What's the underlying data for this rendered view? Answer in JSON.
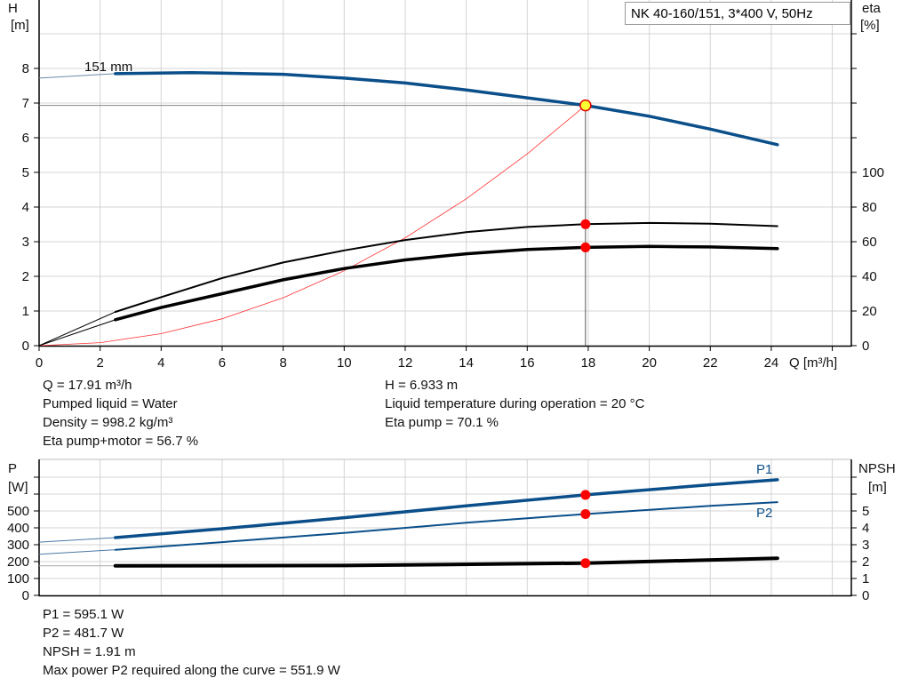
{
  "chart_data": [
    {
      "type": "line",
      "title": "NK 40-160/151, 3*400 V, 50Hz",
      "xlabel": "Q [m³/h]",
      "ylabel_left": "H",
      "ylabel_left_unit": "[m]",
      "ylabel_right": "eta",
      "ylabel_right_unit": "[%]",
      "xlim": [
        0,
        26
      ],
      "ylim_left": [
        0,
        10
      ],
      "ylim_right": [
        0,
        200
      ],
      "x_ticks": [
        "0",
        "2",
        "4",
        "6",
        "8",
        "10",
        "12",
        "14",
        "16",
        "18",
        "20",
        "22",
        "24"
      ],
      "y_left_ticks": [
        "0",
        "1",
        "2",
        "3",
        "4",
        "5",
        "6",
        "7",
        "8"
      ],
      "y_right_ticks": [
        "0",
        "20",
        "40",
        "60",
        "80",
        "100"
      ],
      "grid": true,
      "curve_label": "151 mm",
      "series": [
        {
          "key": "H",
          "axis": "left",
          "color": "#0b4f8a",
          "x": [
            0,
            2.5,
            5,
            8,
            10,
            12,
            14,
            16,
            17.91,
            20,
            22,
            24.2
          ],
          "y": [
            7.72,
            7.85,
            7.88,
            7.83,
            7.72,
            7.58,
            7.38,
            7.15,
            6.933,
            6.62,
            6.25,
            5.8
          ]
        },
        {
          "key": "eta_pump",
          "axis": "right",
          "color": "#000000",
          "x": [
            0,
            2.5,
            4,
            6,
            8,
            10,
            12,
            14,
            16,
            17.91,
            20,
            22,
            24.2
          ],
          "y": [
            0,
            19.5,
            28,
            39,
            48,
            55,
            61,
            65.5,
            68.5,
            70.1,
            70.8,
            70.4,
            69
          ]
        },
        {
          "key": "eta_pump_motor",
          "axis": "right",
          "color": "#000000",
          "x": [
            0,
            2.5,
            4,
            6,
            8,
            10,
            12,
            14,
            16,
            17.91,
            20,
            22,
            24.2
          ],
          "y": [
            0,
            15,
            22,
            30,
            38,
            44.5,
            49.5,
            53,
            55.5,
            56.7,
            57.3,
            57,
            56
          ]
        },
        {
          "key": "system",
          "axis": "left",
          "color": "#ff3030",
          "x": [
            0,
            2,
            4,
            6,
            8,
            10,
            12,
            14,
            16,
            17.91
          ],
          "y": [
            0,
            0.086,
            0.346,
            0.778,
            1.383,
            2.161,
            3.112,
            4.236,
            5.533,
            6.933
          ]
        }
      ],
      "duty_point": {
        "Q": 17.91,
        "H": 6.933,
        "eta_pump": 70.1,
        "eta_pump_motor": 56.7
      }
    },
    {
      "type": "line",
      "ylabel_left": "P",
      "ylabel_left_unit": "[W]",
      "ylabel_right": "NPSH",
      "ylabel_right_unit": "[m]",
      "xlim": [
        0,
        26
      ],
      "ylim_left": [
        0,
        800
      ],
      "ylim_right": [
        0,
        8
      ],
      "y_left_ticks": [
        "0",
        "100",
        "200",
        "300",
        "400",
        "500"
      ],
      "y_right_ticks": [
        "0",
        "1",
        "2",
        "3",
        "4",
        "5"
      ],
      "grid": true,
      "series": [
        {
          "name": "P1",
          "axis": "left",
          "color": "#0b4f8a",
          "x": [
            0,
            2.5,
            6,
            10,
            14,
            17.91,
            22,
            24.2
          ],
          "y": [
            315,
            342,
            395,
            460,
            530,
            595.1,
            655,
            685
          ]
        },
        {
          "name": "P2",
          "axis": "left",
          "color": "#0b4f8a",
          "x": [
            0,
            2.5,
            6,
            10,
            14,
            17.91,
            22,
            24.2
          ],
          "y": [
            243,
            270,
            315,
            370,
            430,
            481.7,
            530,
            552
          ]
        },
        {
          "key": "NPSH",
          "axis": "right",
          "color": "#000000",
          "x": [
            0,
            2.5,
            10,
            17.91,
            24.2
          ],
          "y": [
            1.75,
            1.75,
            1.77,
            1.91,
            2.2
          ]
        }
      ]
    }
  ],
  "info_top": {
    "q": "Q = 17.91 m³/h",
    "liquid": "Pumped liquid = Water",
    "density": "Density = 998.2 kg/m³",
    "eta_pm": "Eta pump+motor = 56.7 %",
    "h": "H = 6.933 m",
    "temp": "Liquid temperature during operation = 20 °C",
    "eta_p": "Eta pump = 70.1 %"
  },
  "info_bottom": {
    "p1": "P1 = 595.1 W",
    "p2": "P2 = 481.7 W",
    "npsh": "NPSH = 1.91 m",
    "maxp2": "Max power P2 required along the curve = 551.9 W"
  }
}
